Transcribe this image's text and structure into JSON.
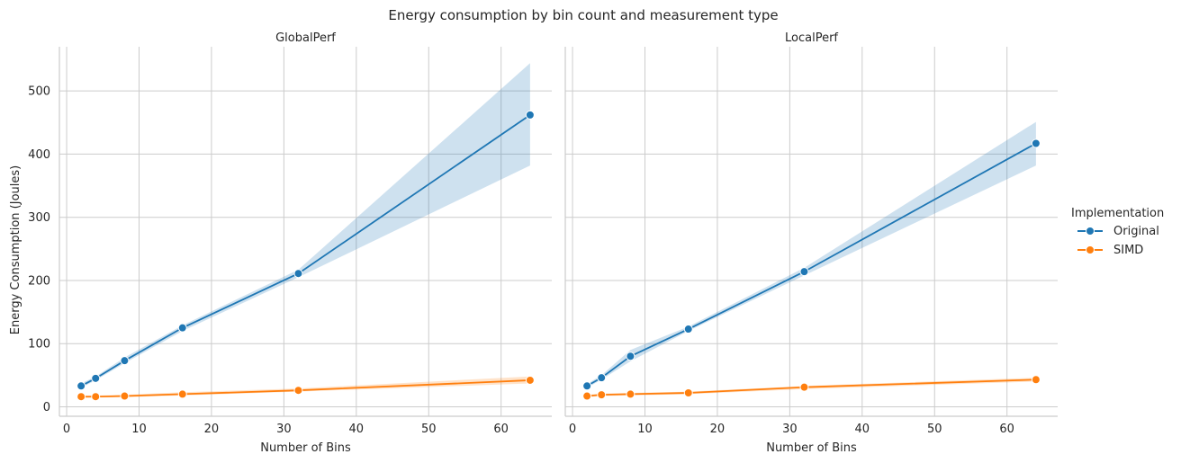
{
  "figure": {
    "title": "Energy consumption by bin count and measurement type",
    "ylabel": "Energy Consumption (Joules)"
  },
  "legend": {
    "title": "Implementation",
    "placement": "right",
    "items": [
      {
        "label": "Original",
        "color": "#1f77b4"
      },
      {
        "label": "SIMD",
        "color": "#ff7f0e"
      }
    ]
  },
  "chart_data": [
    {
      "type": "line",
      "title": "GlobalPerf",
      "xlabel": "Number of Bins",
      "ylabel": "Energy Consumption (Joules)",
      "xlim": [
        -1,
        67
      ],
      "ylim": [
        -15,
        570
      ],
      "xticks": [
        0,
        10,
        20,
        30,
        40,
        50,
        60
      ],
      "yticks": [
        0,
        100,
        200,
        300,
        400,
        500
      ],
      "grid": true,
      "x": [
        2,
        4,
        8,
        16,
        32,
        64
      ],
      "series": [
        {
          "name": "Original",
          "color": "#1f77b4",
          "values": [
            33,
            45,
            73,
            125,
            211,
            462
          ],
          "lower": [
            30,
            42,
            69,
            120,
            205,
            382
          ],
          "upper": [
            37,
            48,
            78,
            129,
            217,
            544
          ]
        },
        {
          "name": "SIMD",
          "color": "#ff7f0e",
          "values": [
            16,
            16,
            17,
            20,
            26,
            42
          ],
          "lower": [
            14,
            15,
            15,
            18,
            24,
            37
          ],
          "upper": [
            18,
            18,
            19,
            23,
            29,
            48
          ]
        }
      ]
    },
    {
      "type": "line",
      "title": "LocalPerf",
      "xlabel": "Number of Bins",
      "ylabel": "",
      "xlim": [
        -1,
        67
      ],
      "ylim": [
        -15,
        570
      ],
      "xticks": [
        0,
        10,
        20,
        30,
        40,
        50,
        60
      ],
      "yticks": [
        0,
        100,
        200,
        300,
        400,
        500
      ],
      "grid": true,
      "x": [
        2,
        4,
        8,
        16,
        32,
        64
      ],
      "series": [
        {
          "name": "Original",
          "color": "#1f77b4",
          "values": [
            33,
            46,
            80,
            123,
            214,
            417
          ],
          "lower": [
            30,
            43,
            72,
            120,
            208,
            382
          ],
          "upper": [
            36,
            50,
            90,
            127,
            220,
            451
          ]
        },
        {
          "name": "SIMD",
          "color": "#ff7f0e",
          "values": [
            17,
            19,
            20,
            22,
            31,
            43
          ],
          "lower": [
            15,
            17,
            18,
            20,
            28,
            40
          ],
          "upper": [
            19,
            21,
            22,
            24,
            33,
            46
          ]
        }
      ]
    }
  ]
}
